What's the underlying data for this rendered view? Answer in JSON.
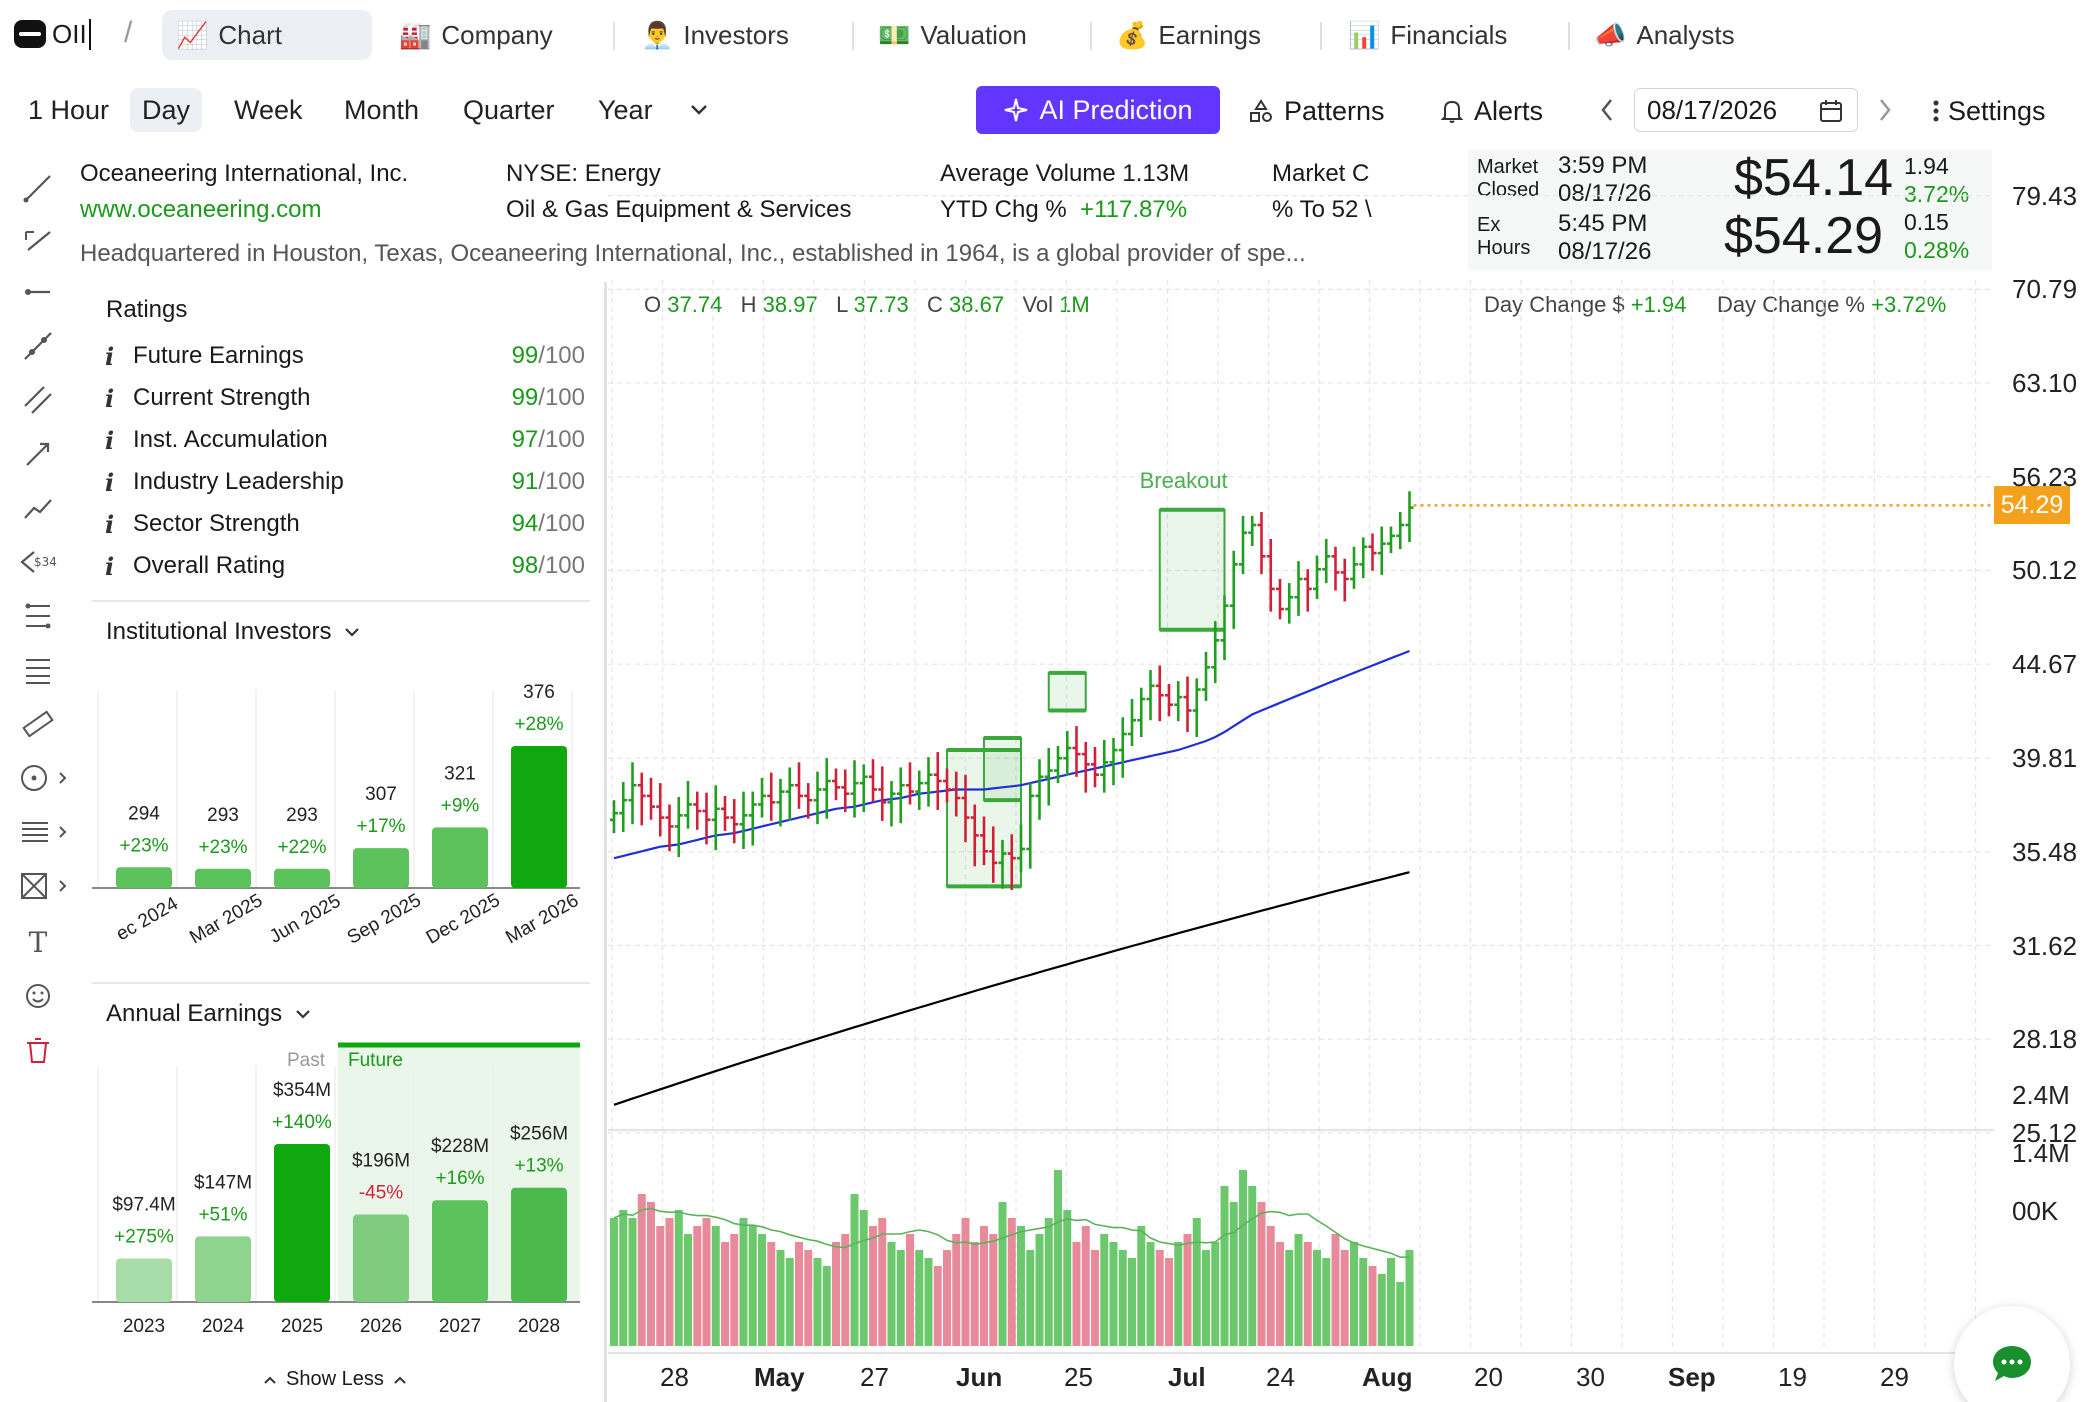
{
  "ticker": "OII",
  "tabs": [
    {
      "label": "Chart",
      "icon": "📈"
    },
    {
      "label": "Company",
      "icon": "🏭"
    },
    {
      "label": "Investors",
      "icon": "👨‍💼"
    },
    {
      "label": "Valuation",
      "icon": "💵"
    },
    {
      "label": "Earnings",
      "icon": "💰"
    },
    {
      "label": "Financials",
      "icon": "📊"
    },
    {
      "label": "Analysts",
      "icon": "📣"
    }
  ],
  "periods": [
    "1 Hour",
    "Day",
    "Week",
    "Month",
    "Quarter",
    "Year"
  ],
  "toolbar": {
    "ai_prediction": "AI Prediction",
    "patterns": "Patterns",
    "alerts": "Alerts",
    "date": "08/17/2026",
    "settings": "Settings"
  },
  "company": {
    "name": "Oceaneering International, Inc.",
    "website": "www.oceaneering.com",
    "exchange_sector": "NYSE: Energy",
    "industry": "Oil & Gas Equipment & Services",
    "avg_volume_label": "Average Volume",
    "avg_volume": "1.13M",
    "ytd_label": "YTD Chg %",
    "ytd": "+117.87%",
    "market_cap_label": "Market C",
    "to52_label": "% To 52 \\",
    "description": "Headquartered in Houston, Texas, Oceaneering International, Inc., established in 1964, is a global provider of spe..."
  },
  "quote": {
    "market_closed_label1": "Market",
    "market_closed_label2": "Closed",
    "closed_time": "3:59 PM",
    "closed_date": "08/17/26",
    "closed_price": "$54.14",
    "closed_change": "1.94",
    "closed_change_pct": "3.72%",
    "ex_label1": "Ex",
    "ex_label2": "Hours",
    "ex_time": "5:45 PM",
    "ex_date": "08/17/26",
    "ex_price": "$54.29",
    "ex_change": "0.15",
    "ex_change_pct": "0.28%",
    "day_change_label": "Day Change $",
    "day_change": "+1.94",
    "day_change_pct_label": "Day Change %",
    "day_change_pct": "+3.72%"
  },
  "ohlc": {
    "o_label": "O",
    "o": "37.74",
    "h_label": "H",
    "h": "38.97",
    "l_label": "L",
    "l": "37.73",
    "c_label": "C",
    "c": "38.67",
    "vol_label": "Vol",
    "vol": "1M"
  },
  "ratings": {
    "title": "Ratings",
    "items": [
      {
        "label": "Future Earnings",
        "value": "99",
        "max": "/100"
      },
      {
        "label": "Current Strength",
        "value": "99",
        "max": "/100"
      },
      {
        "label": "Inst. Accumulation",
        "value": "97",
        "max": "/100"
      },
      {
        "label": "Industry Leadership",
        "value": "91",
        "max": "/100"
      },
      {
        "label": "Sector Strength",
        "value": "94",
        "max": "/100"
      },
      {
        "label": "Overall Rating",
        "value": "98",
        "max": "/100"
      }
    ]
  },
  "institutional": {
    "title": "Institutional Investors",
    "bars": [
      {
        "period": "ec 2024",
        "value": 294,
        "change": "+23%"
      },
      {
        "period": "Mar 2025",
        "value": 293,
        "change": "+23%"
      },
      {
        "period": "Jun 2025",
        "value": 293,
        "change": "+22%"
      },
      {
        "period": "Sep 2025",
        "value": 307,
        "change": "+17%"
      },
      {
        "period": "Dec 2025",
        "value": 321,
        "change": "+9%"
      },
      {
        "period": "Mar 2026",
        "value": 376,
        "change": "+28%"
      }
    ]
  },
  "annual_earnings": {
    "title": "Annual Earnings",
    "past_label": "Past",
    "future_label": "Future",
    "show_less": "Show Less",
    "bars": [
      {
        "year": "2023",
        "value_label": "$97.4M",
        "value": 97.4,
        "change": "+275%",
        "sign": "pos"
      },
      {
        "year": "2024",
        "value_label": "$147M",
        "value": 147,
        "change": "+51%",
        "sign": "pos"
      },
      {
        "year": "2025",
        "value_label": "$354M",
        "value": 354,
        "change": "+140%",
        "sign": "pos"
      },
      {
        "year": "2026",
        "value_label": "$196M",
        "value": 196,
        "change": "-45%",
        "sign": "neg"
      },
      {
        "year": "2027",
        "value_label": "$228M",
        "value": 228,
        "change": "+16%",
        "sign": "pos"
      },
      {
        "year": "2028",
        "value_label": "$256M",
        "value": 256,
        "change": "+13%",
        "sign": "pos"
      }
    ]
  },
  "chart_data": {
    "type": "candlestick",
    "y_ticks": [
      "79.43",
      "70.79",
      "63.10",
      "56.23",
      "50.12",
      "44.67",
      "39.81",
      "35.48",
      "31.62",
      "28.18",
      "25.12"
    ],
    "y_scale": "log",
    "ylim": [
      24,
      80
    ],
    "x_ticks": [
      "28",
      "May",
      "27",
      "Jun",
      "25",
      "Jul",
      "24",
      "Aug",
      "20",
      "30",
      "Sep",
      "19",
      "29"
    ],
    "last_price_label": "54.29",
    "last_price": 54.29,
    "pattern_label": "Breakout",
    "volume_ticks": [
      "2.4M",
      "1.4M",
      "00K"
    ],
    "closes": [
      37.2,
      37.8,
      38.5,
      38.0,
      37.5,
      37.0,
      36.6,
      37.1,
      37.6,
      37.3,
      36.9,
      37.4,
      37.0,
      36.7,
      37.1,
      37.6,
      38.0,
      37.7,
      38.2,
      38.5,
      38.0,
      37.8,
      38.3,
      38.7,
      38.4,
      38.1,
      38.6,
      38.9,
      38.3,
      37.7,
      38.1,
      38.5,
      38.2,
      38.6,
      39.0,
      38.7,
      38.3,
      37.9,
      37.0,
      36.2,
      35.5,
      35.0,
      35.4,
      35.2,
      35.6,
      38.0,
      38.9,
      39.2,
      39.8,
      40.3,
      40.0,
      39.5,
      39.0,
      39.6,
      40.2,
      41.0,
      41.7,
      42.8,
      43.5,
      43.0,
      42.5,
      42.9,
      42.2,
      43.3,
      44.5,
      46.0,
      48.0,
      50.5,
      52.5,
      53.0,
      51.0,
      49.0,
      47.8,
      48.5,
      49.6,
      49.0,
      50.2,
      51.0,
      50.0,
      49.6,
      50.5,
      51.6,
      51.2,
      51.8,
      52.3,
      53.0,
      54.14
    ],
    "sma50": [
      35.2,
      35.3,
      35.4,
      35.5,
      35.6,
      35.7,
      35.75,
      35.8,
      35.9,
      36.0,
      36.1,
      36.2,
      36.25,
      36.3,
      36.4,
      36.5,
      36.6,
      36.7,
      36.8,
      36.9,
      37.0,
      37.1,
      37.2,
      37.3,
      37.4,
      37.45,
      37.5,
      37.6,
      37.7,
      37.8,
      37.85,
      37.9,
      38.0,
      38.1,
      38.15,
      38.2,
      38.25,
      38.3,
      38.3,
      38.3,
      38.3,
      38.35,
      38.4,
      38.45,
      38.5,
      38.6,
      38.7,
      38.8,
      38.9,
      39.0,
      39.1,
      39.2,
      39.3,
      39.4,
      39.5,
      39.6,
      39.7,
      39.8,
      39.9,
      40.0,
      40.1,
      40.2,
      40.35,
      40.5,
      40.65,
      40.85,
      41.1,
      41.4,
      41.7,
      42.0,
      42.2,
      42.4,
      42.6,
      42.8,
      43.0,
      43.2,
      43.4,
      43.6,
      43.8,
      44.0,
      44.2,
      44.4,
      44.6,
      44.8,
      45.0,
      45.2,
      45.4
    ],
    "sma200": [
      26.0,
      26.1,
      26.2,
      26.3,
      26.4,
      26.5,
      26.6,
      26.7,
      26.8,
      26.9,
      27.0,
      27.1,
      27.2,
      27.3,
      27.4,
      27.5,
      27.6,
      27.7,
      27.8,
      27.9,
      28.0,
      28.1,
      28.2,
      28.3,
      28.4,
      28.5,
      28.6,
      28.7,
      28.8,
      28.9,
      29.0,
      29.1,
      29.2,
      29.3,
      29.4,
      29.5,
      29.6,
      29.7,
      29.8,
      29.9,
      30.0,
      30.1,
      30.2,
      30.3,
      30.4,
      30.5,
      30.6,
      30.7,
      30.8,
      30.9,
      31.0,
      31.1,
      31.2,
      31.3,
      31.4,
      31.5,
      31.6,
      31.7,
      31.8,
      31.9,
      32.0,
      32.1,
      32.2,
      32.3,
      32.4,
      32.5,
      32.6,
      32.7,
      32.8,
      32.9,
      33.0,
      33.1,
      33.2,
      33.3,
      33.4,
      33.5,
      33.6,
      33.7,
      33.8,
      33.9,
      34.0,
      34.1,
      34.2,
      34.3,
      34.4,
      34.5,
      34.6
    ],
    "volumes": [
      1.6,
      1.7,
      1.6,
      1.9,
      1.8,
      1.5,
      1.6,
      1.7,
      1.4,
      1.5,
      1.6,
      1.5,
      1.3,
      1.4,
      1.6,
      1.5,
      1.4,
      1.3,
      1.2,
      1.1,
      1.3,
      1.2,
      1.1,
      1.0,
      1.3,
      1.4,
      1.9,
      1.7,
      1.5,
      1.6,
      1.3,
      1.2,
      1.4,
      1.2,
      1.1,
      1.0,
      1.2,
      1.4,
      1.6,
      1.3,
      1.5,
      1.4,
      1.8,
      1.6,
      1.5,
      1.2,
      1.4,
      1.6,
      2.2,
      1.7,
      1.3,
      1.5,
      1.2,
      1.4,
      1.3,
      1.2,
      1.1,
      1.5,
      1.3,
      1.2,
      1.1,
      1.3,
      1.4,
      1.6,
      1.2,
      1.3,
      2.0,
      1.8,
      2.2,
      2.0,
      1.8,
      1.5,
      1.3,
      1.2,
      1.4,
      1.3,
      1.2,
      1.1,
      1.4,
      1.2,
      1.3,
      1.1,
      1.0,
      0.9,
      1.1,
      0.8,
      1.2
    ]
  },
  "colors": {
    "up": "#1f9e1f",
    "down": "#d0213b",
    "sma50": "#1f2fd6",
    "sma200": "#000000",
    "accent": "#6236ff",
    "last_price": "#f4a11e"
  }
}
